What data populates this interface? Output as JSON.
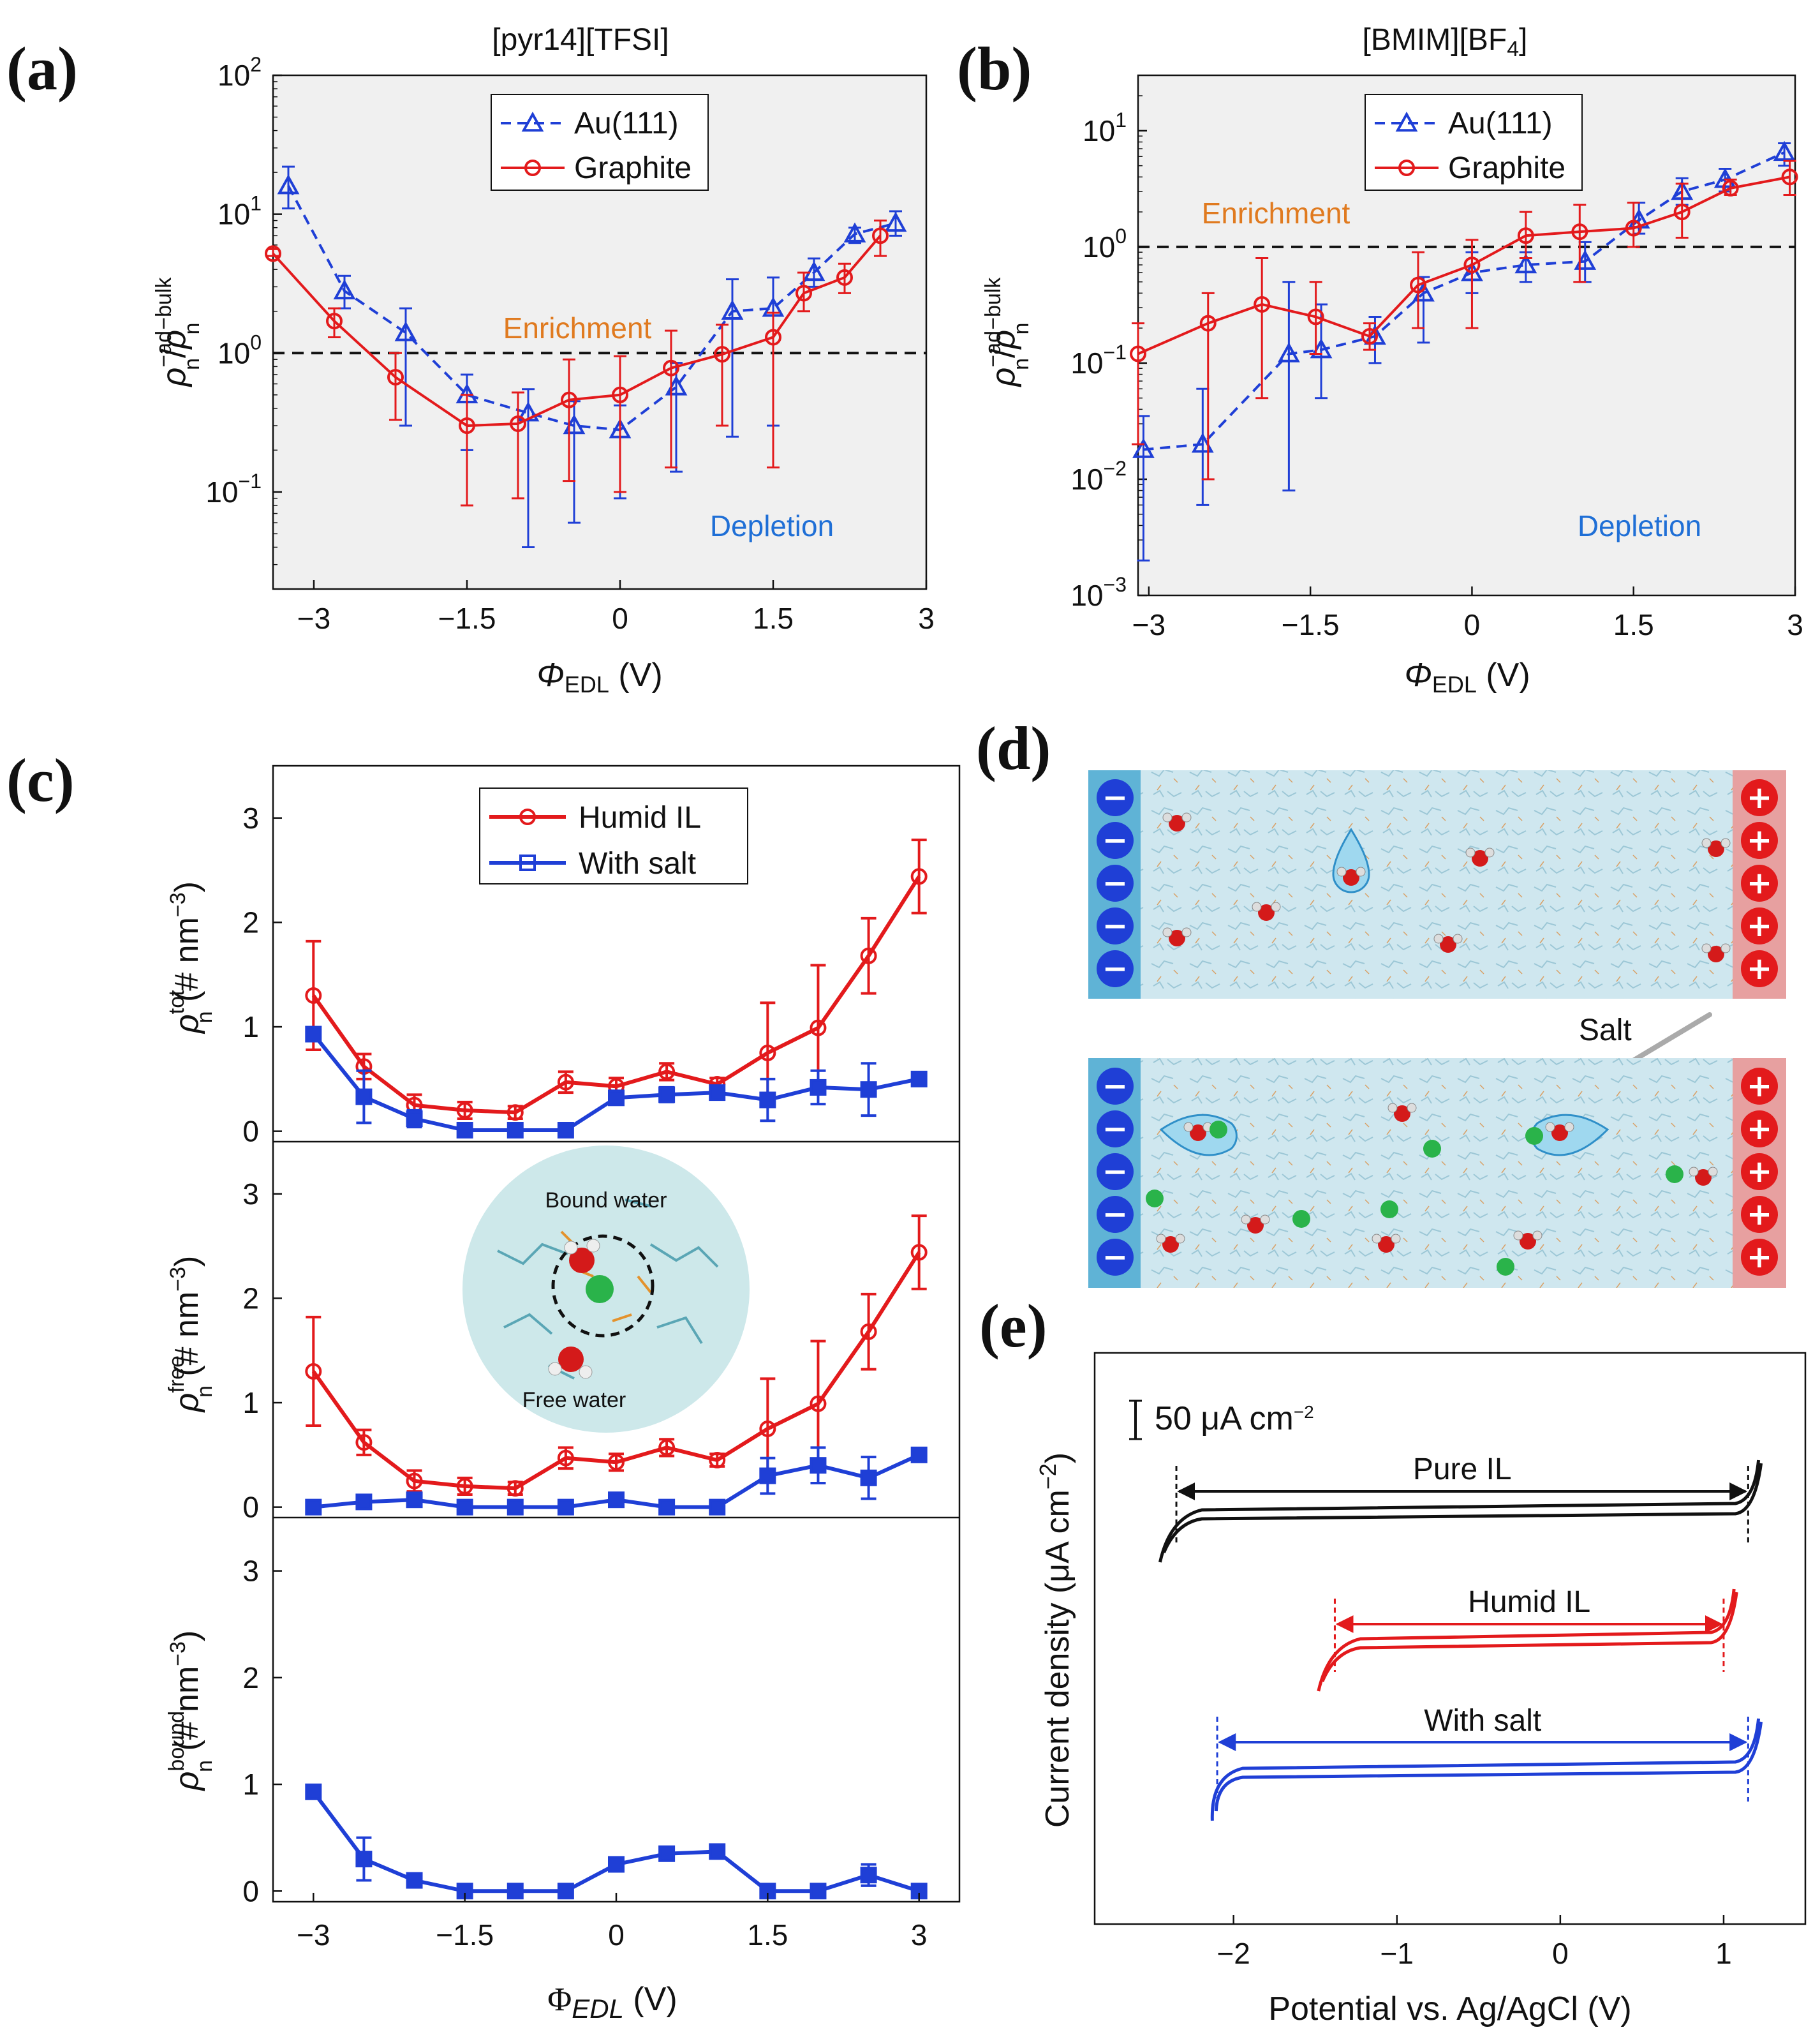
{
  "colors": {
    "red": "#e31a1c",
    "blue": "#1f3fd6",
    "black": "#111111",
    "enrich": "#e07a1f",
    "deplete": "#1f6fd6",
    "panel_bg": "#f0f0f0"
  },
  "panel_labels": {
    "a": "(a)",
    "b": "(b)",
    "c": "(c)",
    "d": "(d)",
    "e": "(e)"
  },
  "chart_data": [
    {
      "id": "a",
      "type": "line",
      "title": "[pyr14][TFSI]",
      "xlabel": "ΦEDL (V)",
      "ylabel": "ρn-ad/ρn-bulk",
      "yscale": "log",
      "xlim": [
        -3.4,
        3.0
      ],
      "ylim": [
        0.02,
        100
      ],
      "xticks": [
        -3,
        -1.5,
        0,
        1.5,
        3
      ],
      "xtick_labels": [
        "−3",
        "−1.5",
        "0",
        "1.5",
        "3"
      ],
      "ytick_labels": [
        "10−1",
        "100",
        "101",
        "102"
      ],
      "legend": [
        "Au(111)",
        "Graphite"
      ],
      "annotations": {
        "enrichment": "Enrichment",
        "depletion": "Depletion"
      },
      "reference_line": 1.0,
      "series": [
        {
          "name": "Au(111)",
          "style": "dashed-triangle",
          "x": [
            -3.25,
            -2.7,
            -2.1,
            -1.5,
            -0.9,
            -0.45,
            0,
            0.55,
            1.1,
            1.5,
            1.9,
            2.3,
            2.7
          ],
          "y": [
            16,
            2.8,
            1.4,
            0.5,
            0.37,
            0.3,
            0.28,
            0.57,
            2.0,
            2.1,
            3.8,
            7.2,
            8.6
          ],
          "err_lo": [
            11,
            2.1,
            0.3,
            0.2,
            0.04,
            0.06,
            0.09,
            0.14,
            0.25,
            0.3,
            3.0,
            6.2,
            7.0
          ],
          "err_hi": [
            22,
            3.6,
            2.1,
            0.7,
            0.55,
            0.45,
            0.42,
            0.85,
            3.4,
            3.5,
            4.8,
            8.0,
            10.5
          ]
        },
        {
          "name": "Graphite",
          "style": "solid-circle",
          "x": [
            -3.4,
            -2.8,
            -2.2,
            -1.5,
            -1.0,
            -0.5,
            0,
            0.5,
            1.0,
            1.5,
            1.8,
            2.2,
            2.55
          ],
          "y": [
            5.2,
            1.7,
            0.67,
            0.3,
            0.31,
            0.46,
            0.5,
            0.78,
            0.98,
            1.3,
            2.7,
            3.5,
            7.0
          ],
          "err_lo": [
            5.0,
            1.3,
            0.33,
            0.08,
            0.09,
            0.12,
            0.1,
            0.15,
            0.3,
            0.15,
            2.0,
            2.7,
            5.0
          ],
          "err_hi": [
            5.6,
            2.1,
            1.0,
            0.5,
            0.52,
            0.9,
            0.95,
            1.45,
            1.6,
            1.95,
            3.8,
            4.4,
            9.0
          ]
        }
      ]
    },
    {
      "id": "b",
      "type": "line",
      "title": "[BMIM][BF4]",
      "xlabel": "ΦEDL (V)",
      "ylabel": "ρn-ad/ρn-bulk",
      "yscale": "log",
      "xlim": [
        -3.1,
        3.0
      ],
      "ylim": [
        0.001,
        30
      ],
      "xticks": [
        -3,
        -1.5,
        0,
        1.5,
        3
      ],
      "xtick_labels": [
        "−3",
        "−1.5",
        "0",
        "1.5",
        "3"
      ],
      "ytick_labels": [
        "10−3",
        "10−2",
        "10−1",
        "100",
        "101"
      ],
      "legend": [
        "Au(111)",
        "Graphite"
      ],
      "annotations": {
        "enrichment": "Enrichment",
        "depletion": "Depletion"
      },
      "reference_line": 1.0,
      "series": [
        {
          "name": "Au(111)",
          "style": "dashed-triangle",
          "x": [
            -3.05,
            -2.5,
            -1.7,
            -1.4,
            -0.9,
            -0.45,
            0,
            0.5,
            1.05,
            1.55,
            1.95,
            2.35,
            2.9
          ],
          "y": [
            0.018,
            0.02,
            0.12,
            0.13,
            0.17,
            0.4,
            0.6,
            0.7,
            0.75,
            1.7,
            3.0,
            3.8,
            6.5
          ],
          "err_lo": [
            0.002,
            0.006,
            0.008,
            0.05,
            0.1,
            0.15,
            0.4,
            0.5,
            0.5,
            1.3,
            2.3,
            3.0,
            5.0
          ],
          "err_hi": [
            0.035,
            0.06,
            0.5,
            0.32,
            0.25,
            0.55,
            0.9,
            0.9,
            1.1,
            2.4,
            3.9,
            4.7,
            7.8
          ]
        },
        {
          "name": "Graphite",
          "style": "solid-circle",
          "x": [
            -3.1,
            -2.45,
            -1.95,
            -1.45,
            -0.95,
            -0.5,
            0,
            0.5,
            1.0,
            1.5,
            1.95,
            2.4,
            2.95
          ],
          "y": [
            0.12,
            0.22,
            0.32,
            0.25,
            0.17,
            0.47,
            0.7,
            1.25,
            1.35,
            1.45,
            2.0,
            3.2,
            4.0
          ],
          "err_lo": [
            0.02,
            0.01,
            0.05,
            0.12,
            0.13,
            0.2,
            0.2,
            0.8,
            0.5,
            1.0,
            1.2,
            2.8,
            2.8
          ],
          "err_hi": [
            0.22,
            0.4,
            0.8,
            0.5,
            0.22,
            0.9,
            1.15,
            2.0,
            2.3,
            2.4,
            3.5,
            3.8,
            5.5
          ]
        }
      ]
    },
    {
      "id": "c",
      "type": "line",
      "subplots": 3,
      "xlabel": "ΦEDL (V)",
      "xlim": [
        -3.4,
        3.4
      ],
      "ylim": [
        -0.1,
        3.5
      ],
      "xticks": [
        -3,
        -1.5,
        0,
        1.5,
        3
      ],
      "xtick_labels": [
        "−3",
        "−1.5",
        "0",
        "1.5",
        "3"
      ],
      "ytick_labels": [
        "0",
        "1",
        "2",
        "3"
      ],
      "ylabels": [
        "ρn-tot (# nm−3)",
        "ρn-free (# nm−3)",
        "ρn-bound (# nm−3)"
      ],
      "legend": [
        "Humid IL",
        "With salt"
      ],
      "inset_labels": {
        "bound": "Bound water",
        "free": "Free water"
      },
      "x": [
        -3,
        -2.5,
        -2,
        -1.5,
        -1,
        -0.5,
        0,
        0.5,
        1,
        1.5,
        2,
        2.5,
        3
      ],
      "series": [
        {
          "subplot": 0,
          "name": "Humid IL",
          "y": [
            1.3,
            0.62,
            0.25,
            0.2,
            0.18,
            0.47,
            0.43,
            0.57,
            0.45,
            0.75,
            0.99,
            1.68,
            2.44
          ],
          "err": [
            0.52,
            0.12,
            0.1,
            0.08,
            0.06,
            0.1,
            0.08,
            0.08,
            0.06,
            0.48,
            0.6,
            0.36,
            0.35
          ]
        },
        {
          "subplot": 0,
          "name": "With salt",
          "y": [
            0.93,
            0.33,
            0.12,
            0.01,
            0.01,
            0.01,
            0.32,
            0.35,
            0.37,
            0.3,
            0.42,
            0.4,
            0.5
          ],
          "err": [
            0.05,
            0.25,
            0.08,
            0.02,
            0.02,
            0.02,
            0.05,
            0.07,
            0.06,
            0.2,
            0.16,
            0.25,
            0.04
          ]
        },
        {
          "subplot": 1,
          "name": "Humid IL",
          "y": [
            1.3,
            0.62,
            0.25,
            0.2,
            0.18,
            0.47,
            0.43,
            0.57,
            0.45,
            0.75,
            0.99,
            1.68,
            2.44
          ],
          "err": [
            0.52,
            0.12,
            0.1,
            0.08,
            0.06,
            0.1,
            0.08,
            0.08,
            0.06,
            0.48,
            0.6,
            0.36,
            0.35
          ]
        },
        {
          "subplot": 1,
          "name": "With salt",
          "y": [
            0.0,
            0.05,
            0.07,
            0.0,
            0.0,
            0.0,
            0.07,
            0.0,
            0.0,
            0.3,
            0.4,
            0.28,
            0.5
          ],
          "err": [
            0.02,
            0.02,
            0.03,
            0.02,
            0.02,
            0.02,
            0.03,
            0.02,
            0.02,
            0.17,
            0.17,
            0.2,
            0.04
          ]
        },
        {
          "subplot": 2,
          "name": "With salt",
          "y": [
            0.93,
            0.3,
            0.1,
            0.0,
            0.0,
            0.0,
            0.25,
            0.35,
            0.37,
            0.0,
            0.0,
            0.15,
            0.0
          ],
          "err": [
            0.03,
            0.2,
            0.04,
            0.02,
            0.02,
            0.02,
            0.04,
            0.06,
            0.06,
            0.02,
            0.02,
            0.1,
            0.02
          ]
        }
      ]
    },
    {
      "id": "e",
      "type": "line",
      "xlabel": "Potential vs. Ag/AgCl (V)",
      "ylabel": "Current density (μA cm−2)",
      "xlim": [
        -2.85,
        1.5
      ],
      "xticks": [
        -2,
        -1,
        0,
        1
      ],
      "xtick_labels": [
        "−2",
        "−1",
        "0",
        "1"
      ],
      "scalebar": "50 μA cm−2",
      "series": [
        {
          "name": "Pure IL",
          "window": [
            -2.35,
            1.15
          ]
        },
        {
          "name": "Humid IL",
          "window": [
            -1.38,
            1.0
          ]
        },
        {
          "name": "With salt",
          "window": [
            -2.1,
            1.15
          ]
        }
      ]
    }
  ],
  "schematic_d": {
    "salt_label": "Salt",
    "neg_sign": "−",
    "pos_sign": "+"
  }
}
